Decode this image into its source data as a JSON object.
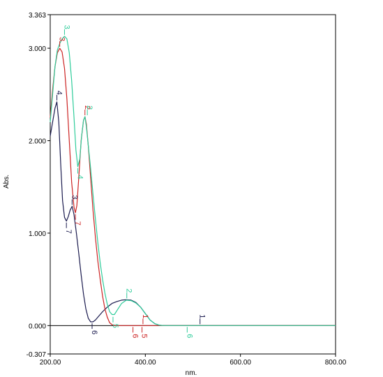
{
  "chart_data": {
    "type": "line",
    "title": "",
    "xlabel": "nm.",
    "ylabel": "Abs.",
    "xlim": [
      200,
      800
    ],
    "ylim": [
      -0.307,
      3.363
    ],
    "x_ticks": [
      "200.00",
      "400.00",
      "600.00",
      "800.00"
    ],
    "y_ticks": [
      "3.363",
      "3.000",
      "2.000",
      "1.000",
      "0.000",
      "-0.307"
    ],
    "y_tick_values": [
      3.363,
      3.0,
      2.0,
      1.0,
      0.0,
      -0.307
    ],
    "x_tick_values": [
      200,
      400,
      600,
      800
    ],
    "grid": false,
    "series": [
      {
        "color": "#1a1a4e",
        "points": [
          [
            200,
            2.05
          ],
          [
            205,
            2.2
          ],
          [
            210,
            2.35
          ],
          [
            214,
            2.42
          ],
          [
            218,
            2.2
          ],
          [
            222,
            1.75
          ],
          [
            226,
            1.35
          ],
          [
            230,
            1.17
          ],
          [
            234,
            1.13
          ],
          [
            238,
            1.18
          ],
          [
            242,
            1.25
          ],
          [
            246,
            1.29
          ],
          [
            250,
            1.2
          ],
          [
            255,
            1.0
          ],
          [
            260,
            0.78
          ],
          [
            265,
            0.55
          ],
          [
            270,
            0.34
          ],
          [
            275,
            0.18
          ],
          [
            280,
            0.08
          ],
          [
            285,
            0.04
          ],
          [
            290,
            0.04
          ],
          [
            295,
            0.06
          ],
          [
            300,
            0.09
          ],
          [
            310,
            0.15
          ],
          [
            320,
            0.2
          ],
          [
            330,
            0.24
          ],
          [
            340,
            0.26
          ],
          [
            350,
            0.275
          ],
          [
            360,
            0.28
          ],
          [
            370,
            0.275
          ],
          [
            380,
            0.25
          ],
          [
            390,
            0.2
          ],
          [
            400,
            0.13
          ],
          [
            410,
            0.06
          ],
          [
            420,
            0.02
          ],
          [
            430,
            0.003
          ],
          [
            440,
            0.0
          ],
          [
            800,
            0.0
          ]
        ]
      },
      {
        "color": "#cc2222",
        "points": [
          [
            200,
            2.25
          ],
          [
            205,
            2.55
          ],
          [
            210,
            2.8
          ],
          [
            215,
            2.95
          ],
          [
            220,
            3.0
          ],
          [
            225,
            2.96
          ],
          [
            230,
            2.78
          ],
          [
            235,
            2.45
          ],
          [
            240,
            2.0
          ],
          [
            245,
            1.55
          ],
          [
            250,
            1.28
          ],
          [
            253,
            1.22
          ],
          [
            256,
            1.3
          ],
          [
            260,
            1.6
          ],
          [
            265,
            2.0
          ],
          [
            270,
            2.22
          ],
          [
            273,
            2.26
          ],
          [
            276,
            2.18
          ],
          [
            280,
            1.95
          ],
          [
            285,
            1.6
          ],
          [
            290,
            1.25
          ],
          [
            295,
            0.95
          ],
          [
            300,
            0.7
          ],
          [
            305,
            0.5
          ],
          [
            310,
            0.32
          ],
          [
            315,
            0.18
          ],
          [
            320,
            0.09
          ],
          [
            325,
            0.03
          ],
          [
            330,
            0.01
          ],
          [
            335,
            0.0
          ],
          [
            800,
            0.0
          ]
        ]
      },
      {
        "color": "#2ecc9a",
        "points": [
          [
            200,
            2.2
          ],
          [
            205,
            2.5
          ],
          [
            210,
            2.8
          ],
          [
            215,
            2.98
          ],
          [
            220,
            3.05
          ],
          [
            225,
            3.1
          ],
          [
            230,
            3.13
          ],
          [
            235,
            3.1
          ],
          [
            240,
            2.95
          ],
          [
            245,
            2.65
          ],
          [
            250,
            2.25
          ],
          [
            254,
            1.9
          ],
          [
            258,
            1.72
          ],
          [
            262,
            1.8
          ],
          [
            266,
            2.05
          ],
          [
            270,
            2.22
          ],
          [
            273,
            2.26
          ],
          [
            276,
            2.15
          ],
          [
            280,
            1.95
          ],
          [
            285,
            1.7
          ],
          [
            290,
            1.42
          ],
          [
            295,
            1.15
          ],
          [
            300,
            0.9
          ],
          [
            305,
            0.68
          ],
          [
            310,
            0.5
          ],
          [
            315,
            0.35
          ],
          [
            320,
            0.23
          ],
          [
            325,
            0.15
          ],
          [
            330,
            0.12
          ],
          [
            335,
            0.12
          ],
          [
            340,
            0.16
          ],
          [
            350,
            0.24
          ],
          [
            360,
            0.275
          ],
          [
            370,
            0.27
          ],
          [
            380,
            0.245
          ],
          [
            390,
            0.2
          ],
          [
            400,
            0.13
          ],
          [
            410,
            0.06
          ],
          [
            420,
            0.02
          ],
          [
            430,
            0.003
          ],
          [
            440,
            0.0
          ],
          [
            800,
            0.0
          ]
        ]
      }
    ],
    "peak_labels": [
      {
        "text": "4",
        "x": 214,
        "y": 2.42,
        "color": "#1a1a4e",
        "marker": "up"
      },
      {
        "text": "3",
        "x": 246,
        "y": 1.29,
        "color": "#1a1a4e",
        "marker": "up"
      },
      {
        "text": "7",
        "x": 234,
        "y": 1.13,
        "color": "#1a1a4e",
        "marker": "down"
      },
      {
        "text": "6",
        "x": 288,
        "y": 0.04,
        "color": "#1a1a4e",
        "marker": "down"
      },
      {
        "text": "3",
        "x": 220,
        "y": 3.0,
        "color": "#cc2222",
        "marker": "up"
      },
      {
        "text": "2",
        "x": 273,
        "y": 2.26,
        "color": "#cc2222",
        "marker": "up"
      },
      {
        "text": "7",
        "x": 253,
        "y": 1.22,
        "color": "#cc2222",
        "marker": "down"
      },
      {
        "text": "3",
        "x": 230,
        "y": 3.13,
        "color": "#2ecc9a",
        "marker": "up"
      },
      {
        "text": "2",
        "x": 278,
        "y": 2.26,
        "color": "#2ecc9a",
        "marker": "up"
      },
      {
        "text": "4",
        "x": 258,
        "y": 1.72,
        "color": "#2ecc9a",
        "marker": "down"
      },
      {
        "text": "2",
        "x": 361,
        "y": 0.28,
        "color": "#2ecc9a",
        "marker": "up"
      },
      {
        "text": "5",
        "x": 332,
        "y": 0.11,
        "color": "#2ecc9a",
        "marker": "down"
      },
      {
        "text": "1",
        "x": 515,
        "y": 0.0,
        "color": "#1a1a4e",
        "marker": "up"
      },
      {
        "text": "1",
        "x": 395,
        "y": 0.0,
        "color": "#cc2222",
        "marker": "up"
      },
      {
        "text": "6",
        "x": 374,
        "y": 0.0,
        "color": "#cc2222",
        "marker": "down"
      },
      {
        "text": "5",
        "x": 393,
        "y": 0.0,
        "color": "#cc2222",
        "marker": "down"
      },
      {
        "text": "6",
        "x": 488,
        "y": 0.0,
        "color": "#2ecc9a",
        "marker": "down"
      }
    ]
  }
}
